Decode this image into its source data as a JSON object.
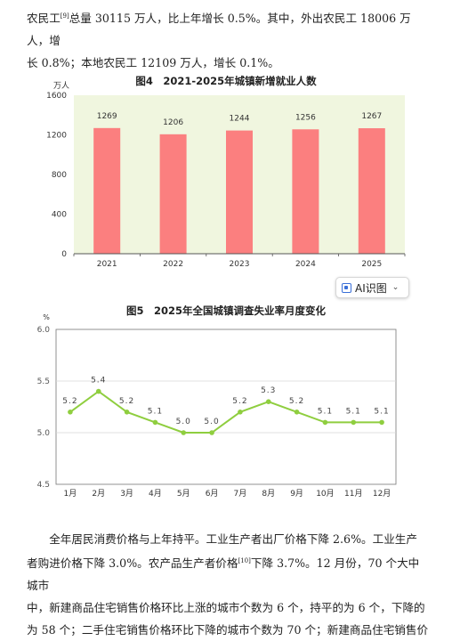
{
  "paragraph_top": {
    "line1_a": "农民工",
    "line1_sup": "[9]",
    "line1_b": "总量 30115 万人，比上年增长 0.5%。其中，外出农民工 18006 万人，增",
    "line2": "长 0.8%；本地农民工 12109 万人，增长 0.1%。"
  },
  "ai_button": {
    "label": "AI识图",
    "chevron": "⌄"
  },
  "paragraph_bottom": {
    "line1": "全年居民消费价格与上年持平。工业生产者出厂价格下降 2.6%。工业生产",
    "line2_a": "者购进价格下降 3.0%。农产品生产者价格",
    "line2_sup": "[10]",
    "line2_b": "下降 3.7%。12 月份，70 个大中城市",
    "line3": "中，新建商品住宅销售价格环比上涨的城市个数为 6 个，持平的为 6 个，下降的",
    "line4": "为 58 个；二手住宅销售价格环比下降的城市个数为 70 个；新建商品住宅销售价"
  },
  "chart_data": [
    {
      "type": "bar",
      "title": "图4　2021-2025年城镇新增就业人数",
      "ylabel": "万人",
      "categories": [
        "2021",
        "2022",
        "2023",
        "2024",
        "2025"
      ],
      "values": [
        1269,
        1206,
        1244,
        1256,
        1267
      ],
      "data_labels": [
        "1269",
        "1206",
        "1244",
        "1256",
        "1267"
      ],
      "ylim": [
        0,
        1600
      ],
      "yticks": [
        "0",
        "400",
        "800",
        "1200",
        "1600"
      ],
      "grid": false,
      "color": "#fb7f7f",
      "plot_background": "#f0f6df"
    },
    {
      "type": "line",
      "title": "图5　2025年全国城镇调查失业率月度变化",
      "ylabel": "%",
      "categories": [
        "1月",
        "2月",
        "3月",
        "4月",
        "5月",
        "6月",
        "7月",
        "8月",
        "9月",
        "10月",
        "11月",
        "12月"
      ],
      "values": [
        5.2,
        5.4,
        5.2,
        5.1,
        5.0,
        5.0,
        5.2,
        5.3,
        5.2,
        5.1,
        5.1,
        5.1
      ],
      "data_labels": [
        "5.2",
        "5.4",
        "5.2",
        "5.1",
        "5.0",
        "5.0",
        "5.2",
        "5.3",
        "5.2",
        "5.1",
        "5.1",
        "5.1"
      ],
      "ylim": [
        4.5,
        6.0
      ],
      "yticks": [
        "4.5",
        "5.0",
        "5.5",
        "6.0"
      ],
      "grid": true,
      "color": "#8fce3f"
    }
  ]
}
